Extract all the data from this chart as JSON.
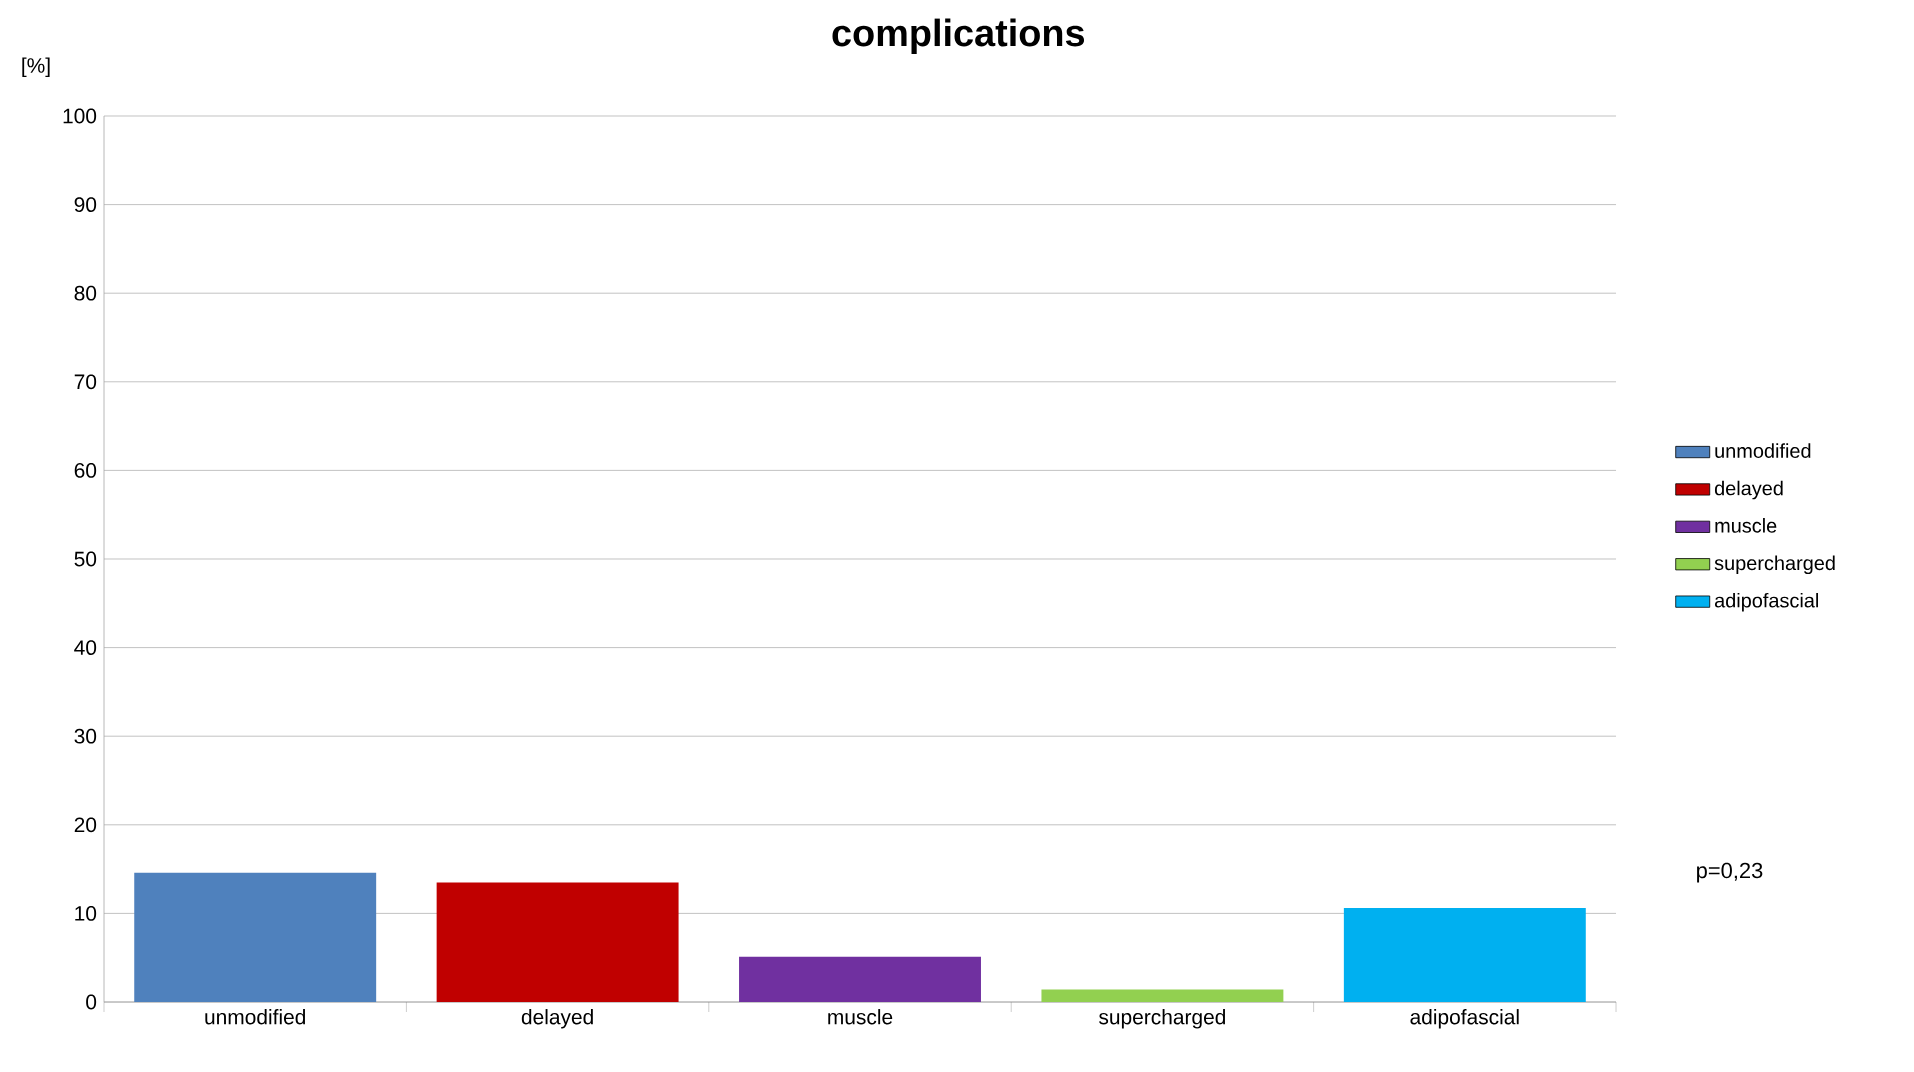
{
  "chart_data": {
    "type": "bar",
    "title": "complications",
    "ylabel": "[%]",
    "categories": [
      "unmodified",
      "delayed",
      "muscle",
      "supercharged",
      "adipofascial"
    ],
    "series": [
      {
        "name": "unmodified",
        "color": "#4f81bd",
        "values": [
          14.6,
          null,
          null,
          null,
          null
        ]
      },
      {
        "name": "delayed",
        "color": "#c00000",
        "values": [
          null,
          13.5,
          null,
          null,
          null
        ]
      },
      {
        "name": "muscle",
        "color": "#7030a0",
        "values": [
          null,
          null,
          5.1,
          null,
          null
        ]
      },
      {
        "name": "supercharged",
        "color": "#92d050",
        "values": [
          null,
          null,
          null,
          1.4,
          null
        ]
      },
      {
        "name": "adipofascial",
        "color": "#00b0f0",
        "values": [
          null,
          null,
          null,
          null,
          10.6
        ]
      }
    ],
    "ylim": [
      0,
      100
    ],
    "yticks": [
      0,
      10,
      20,
      30,
      40,
      50,
      60,
      70,
      80,
      90,
      100
    ],
    "grid": "y",
    "legend": "right",
    "annotations": [
      "p=0,23"
    ]
  }
}
